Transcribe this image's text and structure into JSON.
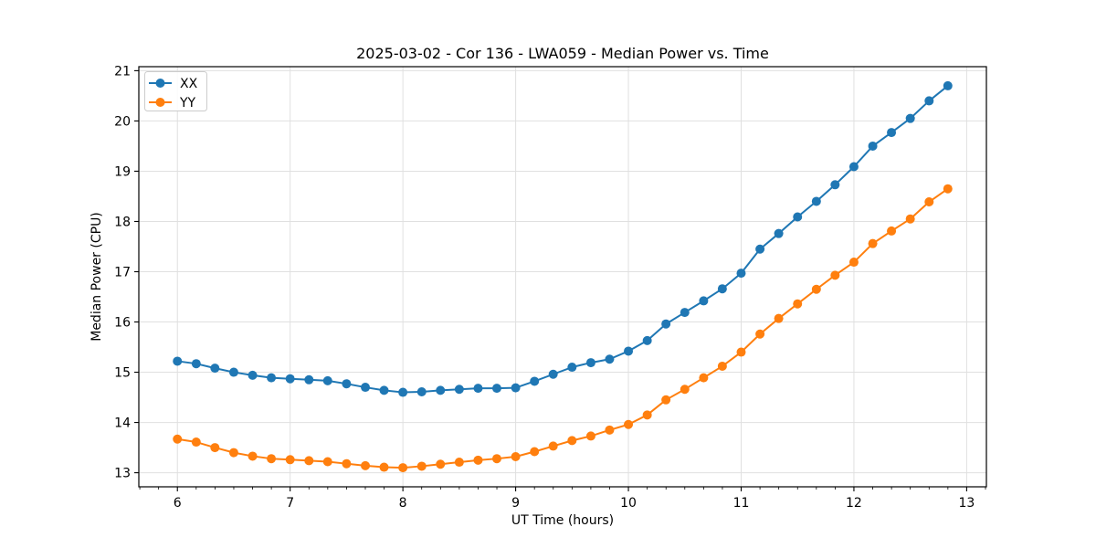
{
  "chart_data": {
    "type": "line",
    "title": "2025-03-02 - Cor 136 - LWA059 - Median Power vs. Time",
    "xlabel": "UT Time (hours)",
    "ylabel": "Median Power (CPU)",
    "xlim": [
      5.658,
      13.175
    ],
    "ylim": [
      12.72,
      21.08
    ],
    "x_ticks": [
      6,
      7,
      8,
      9,
      10,
      11,
      12,
      13
    ],
    "y_ticks": [
      13,
      14,
      15,
      16,
      17,
      18,
      19,
      20,
      21
    ],
    "x_minor_tick_step": 0.16667,
    "grid": true,
    "grid_color": "#e0e0e0",
    "spine_color": "#000000",
    "background_color": "#ffffff",
    "legend_position": "upper left",
    "x": [
      6,
      6.167,
      6.333,
      6.5,
      6.667,
      6.833,
      7,
      7.167,
      7.333,
      7.5,
      7.667,
      7.833,
      8,
      8.167,
      8.333,
      8.5,
      8.667,
      8.833,
      9,
      9.167,
      9.333,
      9.5,
      9.667,
      9.833,
      10,
      10.167,
      10.333,
      10.5,
      10.667,
      10.833,
      11,
      11.167,
      11.333,
      11.5,
      11.667,
      11.833,
      12,
      12.167,
      12.333,
      12.5,
      12.667,
      12.833
    ],
    "series": [
      {
        "name": "XX",
        "color": "#1f77b4",
        "values": [
          15.22,
          15.17,
          15.08,
          15.0,
          14.94,
          14.89,
          14.87,
          14.85,
          14.83,
          14.77,
          14.7,
          14.64,
          14.6,
          14.61,
          14.64,
          14.66,
          14.68,
          14.68,
          14.69,
          14.82,
          14.96,
          15.1,
          15.19,
          15.26,
          15.42,
          15.63,
          15.96,
          16.19,
          16.42,
          16.66,
          16.97,
          17.45,
          17.76,
          18.09,
          18.4,
          18.73,
          19.09,
          19.5,
          19.77,
          20.05,
          20.4,
          20.7
        ]
      },
      {
        "name": "YY",
        "color": "#ff7f0e",
        "values": [
          13.67,
          13.61,
          13.5,
          13.4,
          13.33,
          13.28,
          13.26,
          13.24,
          13.22,
          13.18,
          13.14,
          13.11,
          13.1,
          13.13,
          13.17,
          13.21,
          13.25,
          13.28,
          13.32,
          13.42,
          13.53,
          13.64,
          13.73,
          13.85,
          13.96,
          14.15,
          14.45,
          14.66,
          14.89,
          15.12,
          15.4,
          15.76,
          16.07,
          16.36,
          16.65,
          16.93,
          17.19,
          17.56,
          17.81,
          18.05,
          18.39,
          18.65
        ]
      }
    ]
  }
}
